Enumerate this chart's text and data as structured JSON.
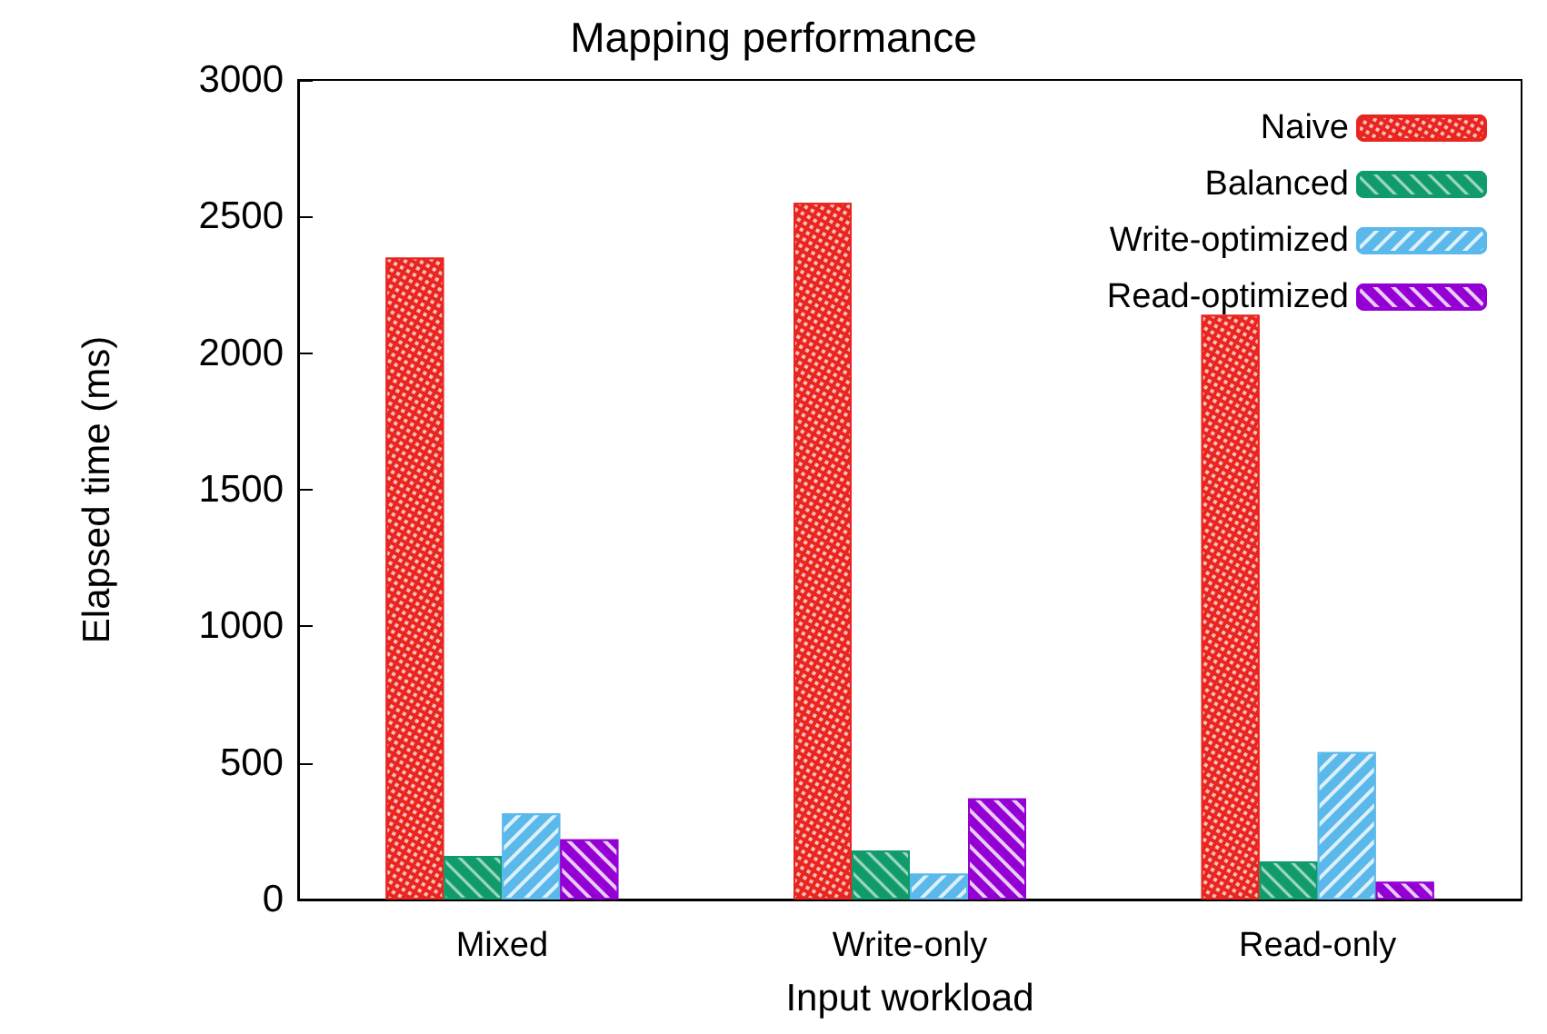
{
  "chart_data": {
    "type": "bar",
    "title": "Mapping performance",
    "xlabel": "Input workload",
    "ylabel": "Elapsed time (ms)",
    "categories": [
      "Mixed",
      "Write-only",
      "Read-only"
    ],
    "series": [
      {
        "name": "Naive",
        "color": "#e8251f",
        "values": [
          2350,
          2550,
          2140
        ]
      },
      {
        "name": "Balanced",
        "color": "#109b6b",
        "values": [
          160,
          180,
          140
        ]
      },
      {
        "name": "Write-optimized",
        "color": "#5bb8ea",
        "values": [
          315,
          95,
          540
        ]
      },
      {
        "name": "Read-optimized",
        "color": "#9400d3",
        "values": [
          220,
          370,
          65
        ]
      }
    ],
    "ylim": [
      0,
      3000
    ],
    "yticks": [
      0,
      500,
      1000,
      1500,
      2000,
      2500,
      3000
    ],
    "grid": false,
    "legend": "top right"
  }
}
